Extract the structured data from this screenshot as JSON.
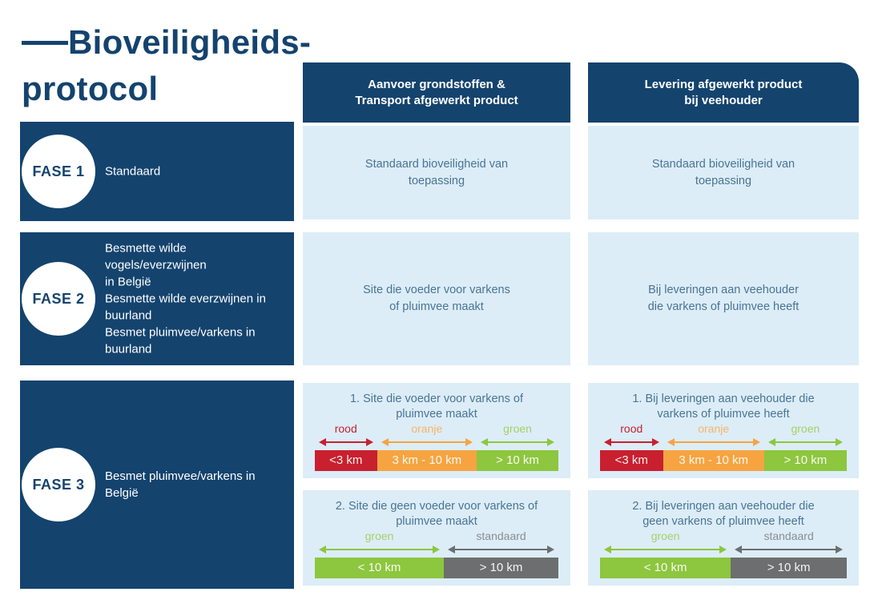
{
  "title": {
    "line1": "Bioveiligheids-",
    "line2": "protocol"
  },
  "colors": {
    "navy": "#14436e",
    "light_blue": "#dcedf8",
    "text_slate": "#4a7494",
    "rood": "#c8202f",
    "oranje": "#f6a441",
    "groen": "#8dc63f",
    "standaard_grijs": "#6d6e70"
  },
  "column_headers": {
    "col1": "Aanvoer grondstoffen &\nTransport afgewerkt product",
    "col2": "Levering afgewerkt product\nbij veehouder"
  },
  "fase1": {
    "name": "FASE 1",
    "description": "Standaard",
    "col1": "Standaard bioveiligheid van\ntoepassing",
    "col2": "Standaard bioveiligheid van\ntoepassing"
  },
  "fase2": {
    "name": "FASE 2",
    "description": "Besmette wilde vogels/everzwijnen\nin België\nBesmette wilde everzwijnen in\nbuurland\nBesmet pluimvee/varkens in\nbuurland",
    "col1": "Site die voeder voor varkens\nof pluimvee maakt",
    "col2": "Bij leveringen aan veehouder\ndie varkens of pluimvee heeft"
  },
  "fase3": {
    "name": "FASE 3",
    "description": "Besmet pluimvee/varkens in België",
    "col1_case1": {
      "title": "1. Site die voeder voor varkens of\npluimvee maakt",
      "segments": [
        {
          "zone": "rood",
          "range": "<3 km",
          "width_pct": 25.5,
          "bar_color": "#c8202f",
          "label_color": "#c8202f"
        },
        {
          "zone": "oranje",
          "range": "3 km - 10 km",
          "width_pct": 41,
          "bar_color": "#f6a441",
          "label_color": "#f8b466"
        },
        {
          "zone": "groen",
          "range": "> 10 km",
          "width_pct": 33.5,
          "bar_color": "#8dc63f",
          "label_color": "#a8cf68"
        }
      ]
    },
    "col1_case2": {
      "title": "2. Site die geen voeder voor varkens of\npluimvee maakt",
      "segments": [
        {
          "zone": "groen",
          "range": "< 10 km",
          "width_pct": 53,
          "bar_color": "#8dc63f",
          "label_color": "#a8cf68"
        },
        {
          "zone": "standaard",
          "range": "> 10 km",
          "width_pct": 47,
          "bar_color": "#6d6e70",
          "label_color": "#8b8d90"
        }
      ]
    },
    "col2_case1": {
      "title": "1. Bij leveringen aan veehouder die\nvarkens of pluimvee heeft",
      "segments": [
        {
          "zone": "rood",
          "range": "<3 km",
          "width_pct": 25.5,
          "bar_color": "#c8202f",
          "label_color": "#c8202f"
        },
        {
          "zone": "oranje",
          "range": "3 km - 10 km",
          "width_pct": 41,
          "bar_color": "#f6a441",
          "label_color": "#f8b466"
        },
        {
          "zone": "groen",
          "range": "> 10 km",
          "width_pct": 33.5,
          "bar_color": "#8dc63f",
          "label_color": "#a8cf68"
        }
      ]
    },
    "col2_case2": {
      "title": "2. Bij leveringen aan veehouder die\ngeen varkens of pluimvee heeft",
      "segments": [
        {
          "zone": "groen",
          "range": "< 10 km",
          "width_pct": 53,
          "bar_color": "#8dc63f",
          "label_color": "#a8cf68"
        },
        {
          "zone": "standaard",
          "range": "> 10 km",
          "width_pct": 47,
          "bar_color": "#6d6e70",
          "label_color": "#8b8d90"
        }
      ]
    }
  }
}
